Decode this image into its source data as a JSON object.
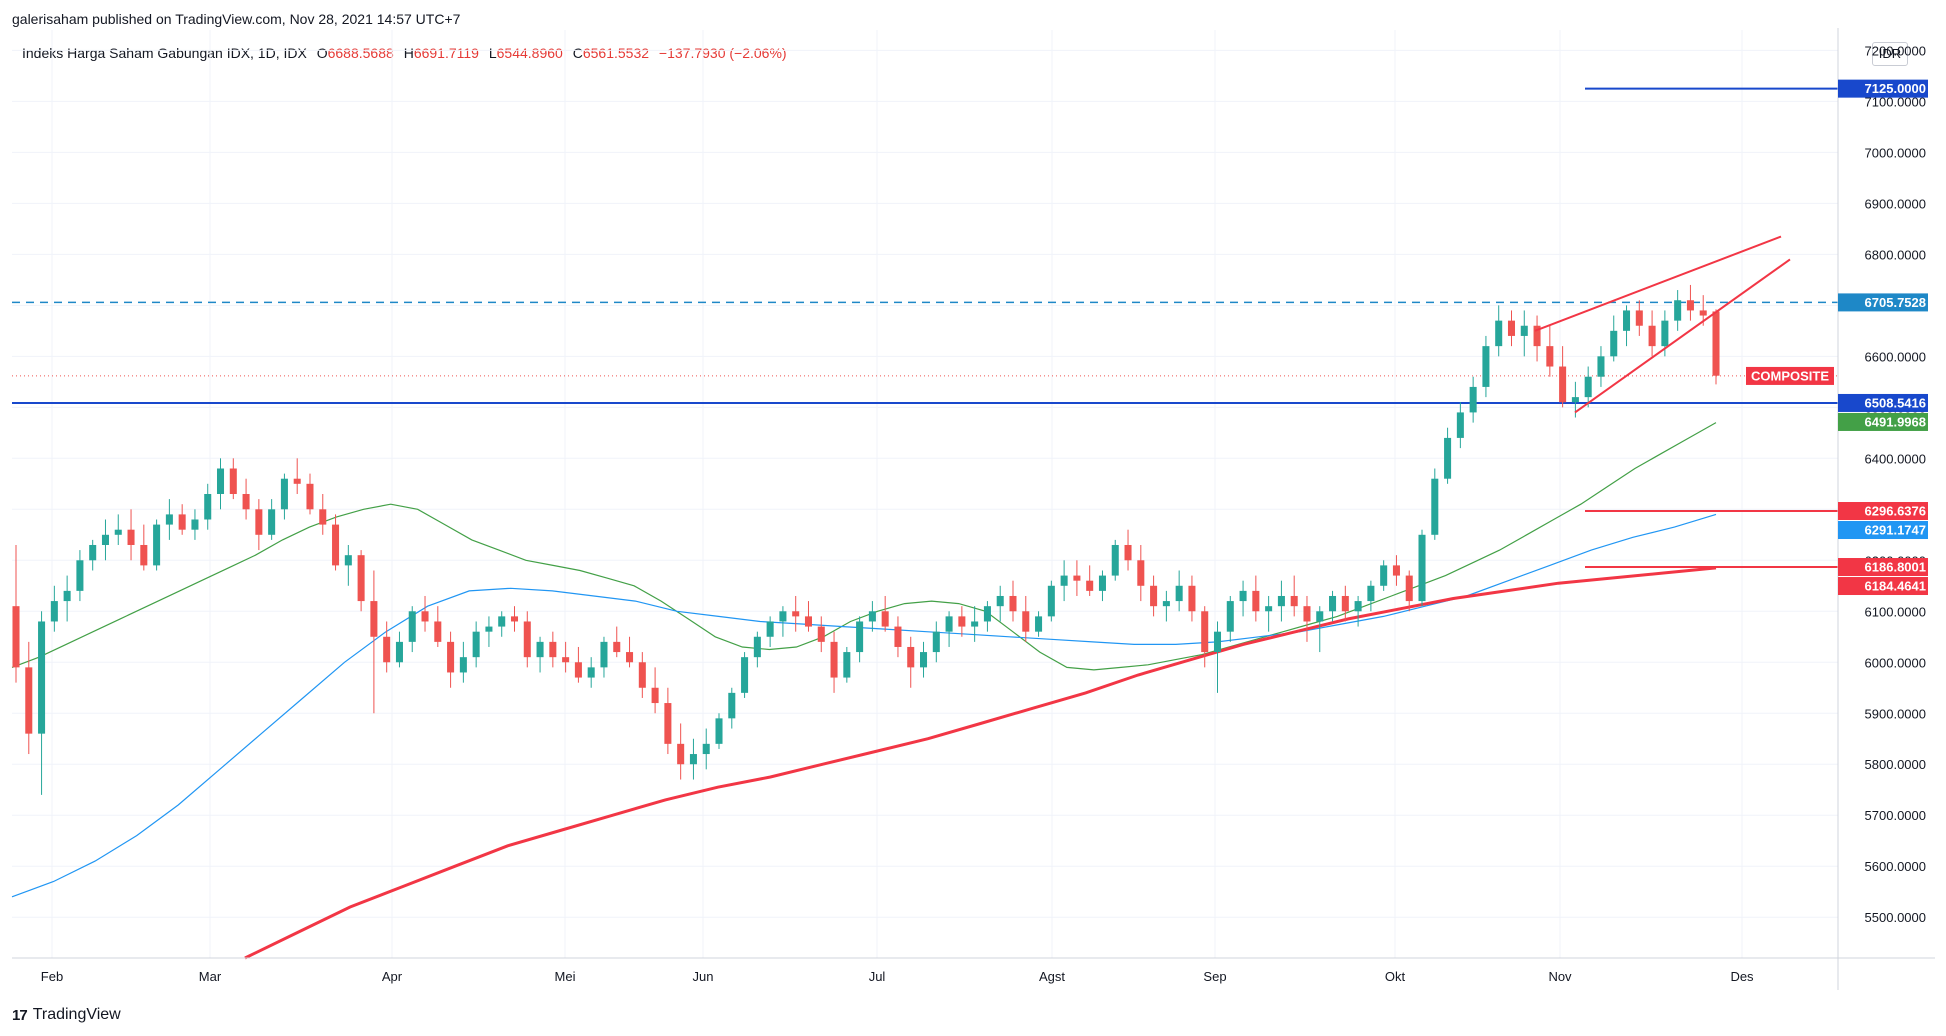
{
  "header": {
    "published": "galerisaham published on TradingView.com, Nov 28, 2021 14:57 UTC+7",
    "symbol": "Indeks Harga Saham Gabungan IDX, 1D, IDX",
    "open_label": "O",
    "open": "6688.5688",
    "high_label": "H",
    "high": "6691.7119",
    "low_label": "L",
    "low": "6544.8960",
    "close_label": "C",
    "close": "6561.5532",
    "change": "−137.7930 (−2.06%)"
  },
  "currency": "IDR",
  "footer": {
    "brand": "TradingView",
    "logo": "17"
  },
  "colors": {
    "up": "#26a69a",
    "down": "#ef5350",
    "blue_line": "#1848cc",
    "sky_line": "#2196f3",
    "green": "#43a047",
    "red_tag": "#f23645"
  },
  "chart_data": {
    "type": "candlestick",
    "ylim": [
      5420,
      7240
    ],
    "y_ticks": [
      5500,
      5600,
      5700,
      5800,
      5900,
      6000,
      6100,
      6200,
      6300,
      6400,
      6500,
      6600,
      6700,
      6800,
      6900,
      7000,
      7100,
      7200
    ],
    "y_tick_labels": [
      "5500.0000",
      "5600.0000",
      "5700.0000",
      "5800.0000",
      "5900.0000",
      "6000.0000",
      "6100.0000",
      "6200.0000",
      "6300.0000",
      "6400.0000",
      "6500.0000",
      "6600.0000",
      "6700.0000",
      "6800.0000",
      "6900.0000",
      "7000.0000",
      "7100.0000",
      "7200.0000"
    ],
    "x_labels": [
      "Feb",
      "Mar",
      "Apr",
      "Mei",
      "Jun",
      "Jul",
      "Agst",
      "Sep",
      "Okt",
      "Nov",
      "Des"
    ],
    "candles_start": "2021-01-27",
    "candles": [
      [
        6110,
        6230,
        5960,
        5990
      ],
      [
        5990,
        6040,
        5820,
        5860
      ],
      [
        5860,
        6100,
        5740,
        6080
      ],
      [
        6080,
        6150,
        6060,
        6120
      ],
      [
        6120,
        6170,
        6080,
        6140
      ],
      [
        6140,
        6220,
        6120,
        6200
      ],
      [
        6200,
        6240,
        6180,
        6230
      ],
      [
        6230,
        6280,
        6200,
        6250
      ],
      [
        6250,
        6290,
        6230,
        6260
      ],
      [
        6260,
        6300,
        6200,
        6230
      ],
      [
        6230,
        6270,
        6180,
        6190
      ],
      [
        6190,
        6280,
        6180,
        6270
      ],
      [
        6270,
        6320,
        6240,
        6290
      ],
      [
        6290,
        6310,
        6250,
        6260
      ],
      [
        6260,
        6300,
        6240,
        6280
      ],
      [
        6280,
        6350,
        6260,
        6330
      ],
      [
        6330,
        6400,
        6300,
        6380
      ],
      [
        6380,
        6400,
        6320,
        6330
      ],
      [
        6330,
        6360,
        6280,
        6300
      ],
      [
        6300,
        6320,
        6220,
        6250
      ],
      [
        6250,
        6320,
        6240,
        6300
      ],
      [
        6300,
        6370,
        6280,
        6360
      ],
      [
        6360,
        6400,
        6330,
        6350
      ],
      [
        6350,
        6370,
        6290,
        6300
      ],
      [
        6300,
        6330,
        6250,
        6270
      ],
      [
        6270,
        6290,
        6180,
        6190
      ],
      [
        6190,
        6230,
        6150,
        6210
      ],
      [
        6210,
        6220,
        6100,
        6120
      ],
      [
        6120,
        6180,
        5900,
        6050
      ],
      [
        6050,
        6080,
        5980,
        6000
      ],
      [
        6000,
        6060,
        5990,
        6040
      ],
      [
        6040,
        6110,
        6020,
        6100
      ],
      [
        6100,
        6130,
        6060,
        6080
      ],
      [
        6080,
        6110,
        6030,
        6040
      ],
      [
        6040,
        6060,
        5950,
        5980
      ],
      [
        5980,
        6040,
        5960,
        6010
      ],
      [
        6010,
        6080,
        5990,
        6060
      ],
      [
        6060,
        6090,
        6030,
        6070
      ],
      [
        6070,
        6100,
        6050,
        6090
      ],
      [
        6090,
        6110,
        6060,
        6080
      ],
      [
        6080,
        6100,
        5990,
        6010
      ],
      [
        6010,
        6050,
        5980,
        6040
      ],
      [
        6040,
        6060,
        5990,
        6010
      ],
      [
        6010,
        6040,
        5980,
        6000
      ],
      [
        6000,
        6030,
        5960,
        5970
      ],
      [
        5970,
        6010,
        5950,
        5990
      ],
      [
        5990,
        6050,
        5970,
        6040
      ],
      [
        6040,
        6070,
        6010,
        6020
      ],
      [
        6020,
        6050,
        5990,
        6000
      ],
      [
        6000,
        6020,
        5930,
        5950
      ],
      [
        5950,
        5990,
        5900,
        5920
      ],
      [
        5920,
        5950,
        5820,
        5840
      ],
      [
        5840,
        5880,
        5770,
        5800
      ],
      [
        5800,
        5850,
        5770,
        5820
      ],
      [
        5820,
        5870,
        5790,
        5840
      ],
      [
        5840,
        5900,
        5830,
        5890
      ],
      [
        5890,
        5950,
        5870,
        5940
      ],
      [
        5940,
        6020,
        5930,
        6010
      ],
      [
        6010,
        6060,
        5990,
        6050
      ],
      [
        6050,
        6090,
        6030,
        6080
      ],
      [
        6080,
        6110,
        6050,
        6100
      ],
      [
        6100,
        6130,
        6060,
        6090
      ],
      [
        6090,
        6120,
        6060,
        6070
      ],
      [
        6070,
        6090,
        6020,
        6040
      ],
      [
        6040,
        6060,
        5940,
        5970
      ],
      [
        5970,
        6030,
        5960,
        6020
      ],
      [
        6020,
        6090,
        6000,
        6080
      ],
      [
        6080,
        6120,
        6060,
        6100
      ],
      [
        6100,
        6130,
        6060,
        6070
      ],
      [
        6070,
        6090,
        6010,
        6030
      ],
      [
        6030,
        6050,
        5950,
        5990
      ],
      [
        5990,
        6040,
        5970,
        6020
      ],
      [
        6020,
        6080,
        6000,
        6060
      ],
      [
        6060,
        6100,
        6030,
        6090
      ],
      [
        6090,
        6110,
        6050,
        6070
      ],
      [
        6070,
        6110,
        6040,
        6080
      ],
      [
        6080,
        6120,
        6060,
        6110
      ],
      [
        6110,
        6150,
        6080,
        6130
      ],
      [
        6130,
        6160,
        6080,
        6100
      ],
      [
        6100,
        6130,
        6040,
        6060
      ],
      [
        6060,
        6100,
        6050,
        6090
      ],
      [
        6090,
        6160,
        6080,
        6150
      ],
      [
        6150,
        6200,
        6120,
        6170
      ],
      [
        6170,
        6200,
        6130,
        6160
      ],
      [
        6160,
        6190,
        6130,
        6140
      ],
      [
        6140,
        6180,
        6120,
        6170
      ],
      [
        6170,
        6240,
        6160,
        6230
      ],
      [
        6230,
        6260,
        6180,
        6200
      ],
      [
        6200,
        6230,
        6120,
        6150
      ],
      [
        6150,
        6170,
        6090,
        6110
      ],
      [
        6110,
        6140,
        6080,
        6120
      ],
      [
        6120,
        6180,
        6100,
        6150
      ],
      [
        6150,
        6170,
        6080,
        6100
      ],
      [
        6100,
        6110,
        5990,
        6020
      ],
      [
        6020,
        6080,
        5940,
        6060
      ],
      [
        6060,
        6130,
        6040,
        6120
      ],
      [
        6120,
        6160,
        6090,
        6140
      ],
      [
        6140,
        6170,
        6080,
        6100
      ],
      [
        6100,
        6130,
        6060,
        6110
      ],
      [
        6110,
        6160,
        6080,
        6130
      ],
      [
        6130,
        6170,
        6090,
        6110
      ],
      [
        6110,
        6130,
        6040,
        6080
      ],
      [
        6080,
        6110,
        6020,
        6100
      ],
      [
        6100,
        6140,
        6080,
        6130
      ],
      [
        6130,
        6150,
        6080,
        6100
      ],
      [
        6100,
        6130,
        6070,
        6120
      ],
      [
        6120,
        6160,
        6100,
        6150
      ],
      [
        6150,
        6200,
        6140,
        6190
      ],
      [
        6190,
        6210,
        6150,
        6170
      ],
      [
        6170,
        6180,
        6100,
        6120
      ],
      [
        6120,
        6260,
        6110,
        6250
      ],
      [
        6250,
        6380,
        6240,
        6360
      ],
      [
        6360,
        6460,
        6350,
        6440
      ],
      [
        6440,
        6510,
        6420,
        6490
      ],
      [
        6490,
        6560,
        6470,
        6540
      ],
      [
        6540,
        6640,
        6520,
        6620
      ],
      [
        6620,
        6700,
        6600,
        6670
      ],
      [
        6670,
        6690,
        6620,
        6640
      ],
      [
        6640,
        6690,
        6600,
        6660
      ],
      [
        6660,
        6680,
        6590,
        6620
      ],
      [
        6620,
        6660,
        6560,
        6580
      ],
      [
        6580,
        6620,
        6500,
        6510
      ],
      [
        6510,
        6550,
        6480,
        6520
      ],
      [
        6520,
        6580,
        6500,
        6560
      ],
      [
        6560,
        6620,
        6540,
        6600
      ],
      [
        6600,
        6680,
        6590,
        6650
      ],
      [
        6650,
        6700,
        6620,
        6690
      ],
      [
        6690,
        6710,
        6640,
        6660
      ],
      [
        6660,
        6690,
        6600,
        6620
      ],
      [
        6620,
        6690,
        6600,
        6670
      ],
      [
        6670,
        6730,
        6650,
        6710
      ],
      [
        6710,
        6740,
        6670,
        6690
      ],
      [
        6690,
        6720,
        6660,
        6680
      ],
      [
        6688,
        6692,
        6545,
        6562
      ]
    ],
    "series": [
      {
        "values": [
          5990,
          6010,
          6035,
          6060,
          6085,
          6110,
          6135,
          6160,
          6185,
          6210,
          6240,
          6265,
          6285,
          6300,
          6310,
          6300,
          6270,
          6240,
          6220,
          6200,
          6190,
          6180,
          6165,
          6150,
          6120,
          6085,
          6050,
          6030,
          6025,
          6030,
          6050,
          6080,
          6100,
          6115,
          6120,
          6115,
          6100,
          6060,
          6020,
          5990,
          5985,
          5990,
          5995,
          6005,
          6015,
          6030,
          6045,
          6060,
          6075,
          6090,
          6110,
          6130,
          6150,
          6170,
          6195,
          6220,
          6250,
          6280,
          6310,
          6345,
          6380,
          6410,
          6440,
          6470
        ]
      },
      {
        "values": [
          5540,
          5570,
          5610,
          5660,
          5720,
          5790,
          5860,
          5930,
          6000,
          6060,
          6110,
          6140,
          6145,
          6140,
          6130,
          6120,
          6100,
          6090,
          6080,
          6075,
          6070,
          6065,
          6060,
          6055,
          6050,
          6045,
          6040,
          6035,
          6035,
          6040,
          6050,
          6060,
          6075,
          6090,
          6110,
          6130,
          6160,
          6190,
          6220,
          6245,
          6265,
          6290
        ]
      },
      {
        "values": [
          5420,
          5470,
          5520,
          5560,
          5600,
          5640,
          5670,
          5700,
          5730,
          5755,
          5775,
          5800,
          5825,
          5850,
          5880,
          5910,
          5940,
          5975,
          6005,
          6035,
          6060,
          6085,
          6105,
          6125,
          6140,
          6155,
          6165,
          6175,
          6185
        ]
      }
    ],
    "levels": {
      "resistance": "7125.0000",
      "dashed": "6705.7528",
      "composite": "COMPOSITE",
      "support": "6508.5416",
      "ma_green": "6491.9968",
      "level_upper": "6296.6376",
      "ma_blue": "6291.1747",
      "level_lower": "6186.8001",
      "ma_red": "6184.4641"
    }
  }
}
